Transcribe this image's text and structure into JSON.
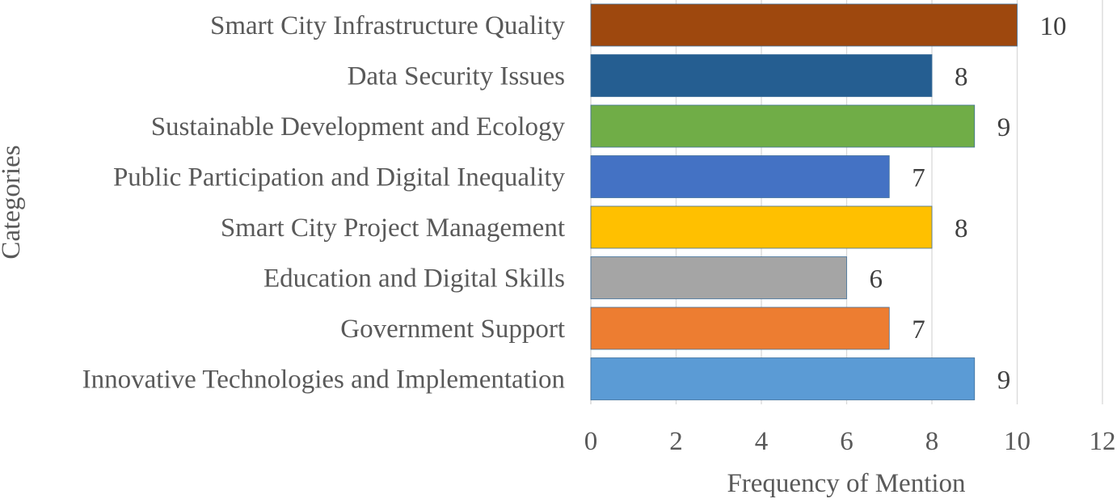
{
  "chart_data": {
    "type": "bar",
    "orientation": "horizontal",
    "title": "",
    "xlabel": "Frequency of Mention",
    "ylabel": "Categories",
    "xlim": [
      0,
      12
    ],
    "xticks": [
      0,
      2,
      4,
      6,
      8,
      10,
      12
    ],
    "grid": true,
    "legend": "none",
    "categories": [
      "Smart City Infrastructure Quality",
      "Data Security Issues",
      "Sustainable Development and Ecology",
      "Public Participation and Digital Inequality",
      "Smart City Project Management",
      "Education and Digital Skills",
      "Government Support",
      "Innovative Technologies and Implementation"
    ],
    "values": [
      10,
      8,
      9,
      7,
      8,
      6,
      7,
      9
    ],
    "colors": [
      "#9E480E",
      "#255E91",
      "#70AD47",
      "#4472C4",
      "#FFC000",
      "#A5A5A5",
      "#ED7D31",
      "#5B9BD5"
    ],
    "data_labels": [
      "10",
      "8",
      "9",
      "7",
      "8",
      "6",
      "7",
      "9"
    ]
  }
}
